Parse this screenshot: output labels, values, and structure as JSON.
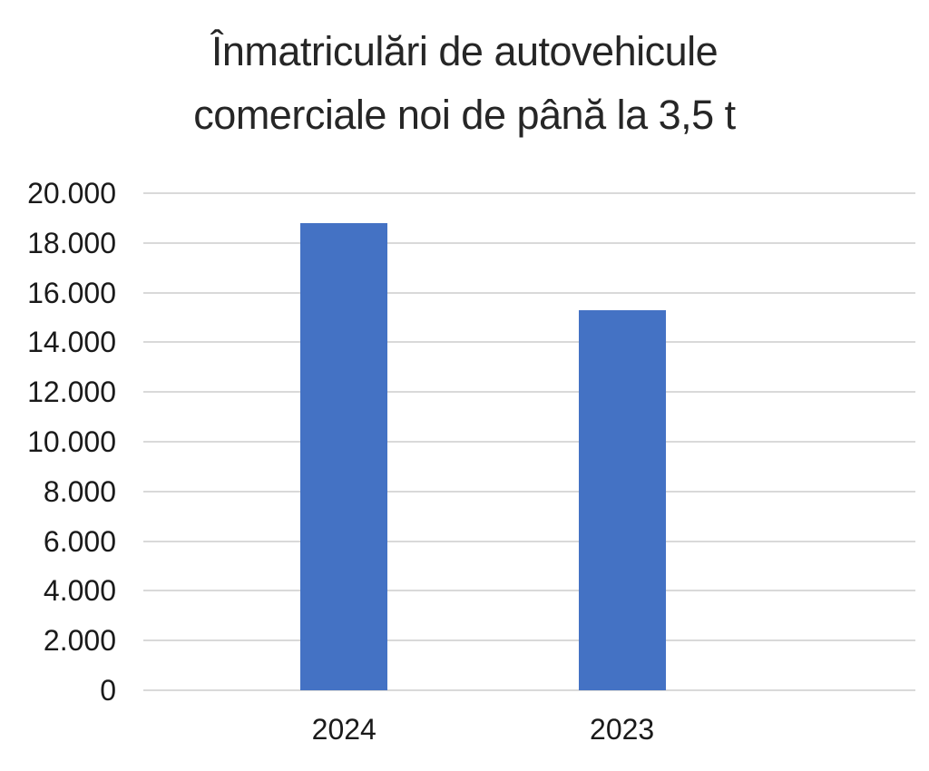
{
  "chart_data": {
    "type": "bar",
    "title": "Înmatriculări de autovehicule comerciale noi de până la 3,5 t",
    "title_lines": [
      "Înmatriculări de autovehicule",
      "comerciale noi de până la 3,5 t"
    ],
    "categories": [
      "2024",
      "2023"
    ],
    "values": [
      18800,
      15300
    ],
    "xlabel": "",
    "ylabel": "",
    "ylim": [
      0,
      20000
    ],
    "yticks": [
      {
        "label": "20.000",
        "value": 20000
      },
      {
        "label": "18.000",
        "value": 18000
      },
      {
        "label": "16.000",
        "value": 16000
      },
      {
        "label": "14.000",
        "value": 14000
      },
      {
        "label": "12.000",
        "value": 12000
      },
      {
        "label": "10.000",
        "value": 10000
      },
      {
        "label": "8.000",
        "value": 8000
      },
      {
        "label": "6.000",
        "value": 6000
      },
      {
        "label": "4.000",
        "value": 4000
      },
      {
        "label": "2.000",
        "value": 2000
      },
      {
        "label": "0",
        "value": 0
      }
    ],
    "grid": true,
    "legend": "none",
    "bar_color": "#4472c4",
    "gridline_color": "#d9d9d9",
    "text_color": "#1a1a1a",
    "title_color": "#262626"
  }
}
